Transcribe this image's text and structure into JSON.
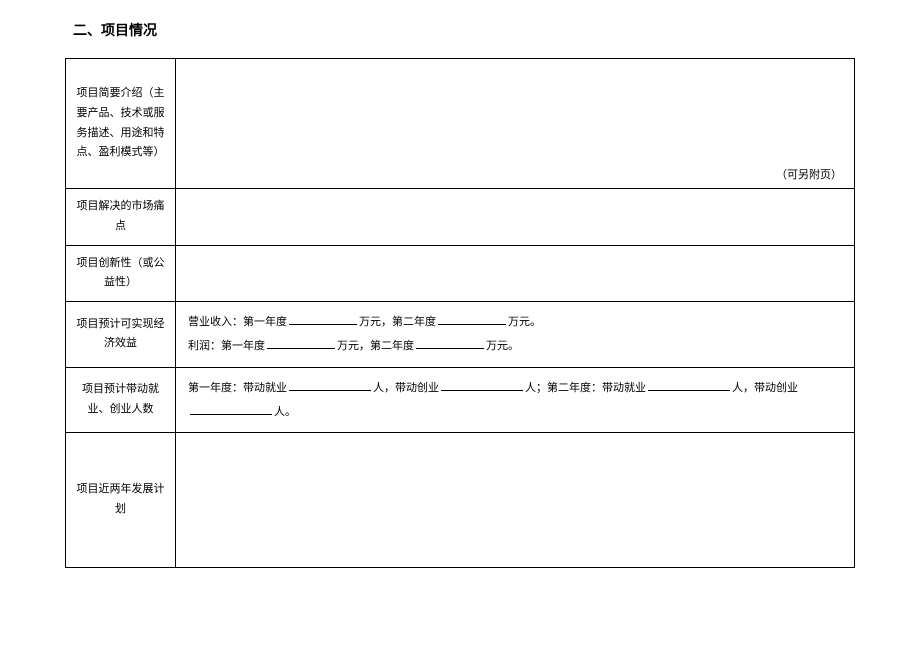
{
  "title": "二、项目情况",
  "rows": {
    "intro": {
      "label": "项目简要介绍（主要产品、技术或服务描述、用途和特点、盈利模式等）",
      "note": "（可另附页）"
    },
    "pain": {
      "label": "项目解决的市场痛点"
    },
    "innovation": {
      "label": "项目创新性（或公益性）"
    },
    "economic": {
      "label": "项目预计可实现经济效益",
      "line1_prefix": "营业收入：第一年度",
      "line1_mid": "万元，第二年度",
      "line1_suffix": "万元。",
      "line2_prefix": "利润：第一年度",
      "line2_mid": "万元，第二年度",
      "line2_suffix": "万元。"
    },
    "employment": {
      "label": "项目预计带动就业、创业人数",
      "y1_prefix": "第一年度：带动就业",
      "y1_mid": "人，带动创业",
      "y1_suffix": "人；第二年度：带动就业",
      "y2_mid": "人，带动创业",
      "y2_suffix": "人。"
    },
    "plan": {
      "label": "项目近两年发展计划"
    }
  },
  "colors": {
    "border": "#000000",
    "text": "#000000",
    "background": "#ffffff"
  },
  "font": {
    "title_size": 14,
    "cell_size": 11,
    "family": "SimSun"
  }
}
